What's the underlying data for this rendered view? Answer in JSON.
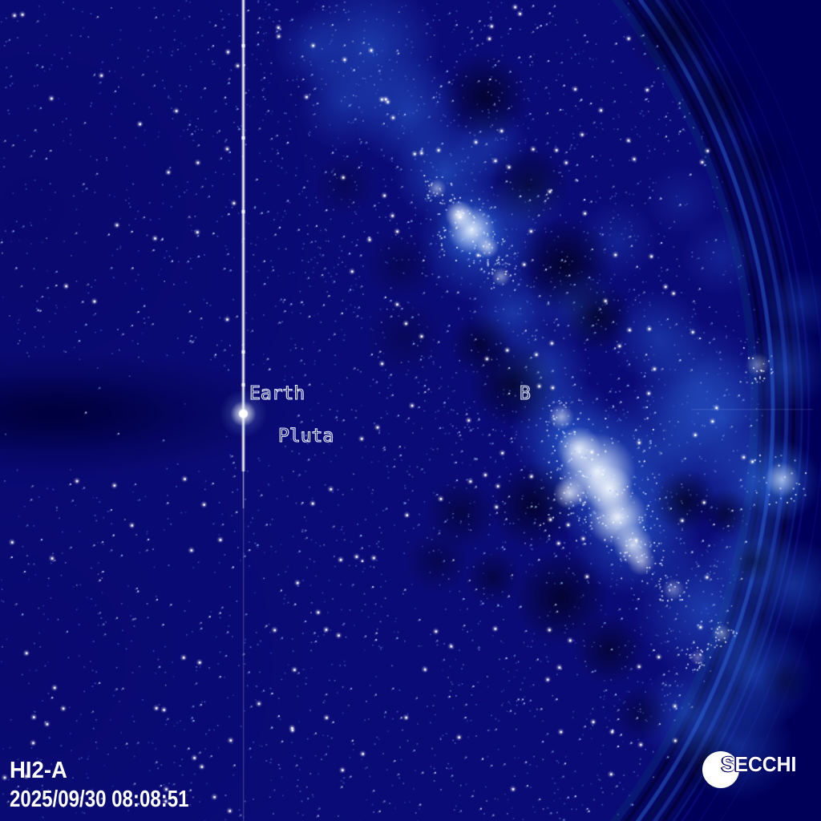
{
  "annotations": {
    "earth": "Earth",
    "pluto": "Pluta",
    "star_b": "B"
  },
  "footer": {
    "camera": "HI2-A",
    "datetime": "2025/09/30 08:08:51"
  },
  "logo": {
    "text": "SECCHI"
  },
  "colors": {
    "outside_bg": "#000058",
    "annulus_bg": "#06065e",
    "field_bg": "#0b0b78",
    "haze_blue": "#2e6bdf",
    "bright_core": "#f3f9ff",
    "dust_dark": "#000016",
    "wedge_dark": "#000048",
    "star_faint": "#6e9bff",
    "star_mid": "#9cc3ff",
    "star_bright": "#ffffff",
    "ring_bright": "#2b63d6",
    "ring_dark": "#02023a",
    "label_color": "#e8efff",
    "footer_color": "#ffffff",
    "logo_color": "#ffffff"
  }
}
